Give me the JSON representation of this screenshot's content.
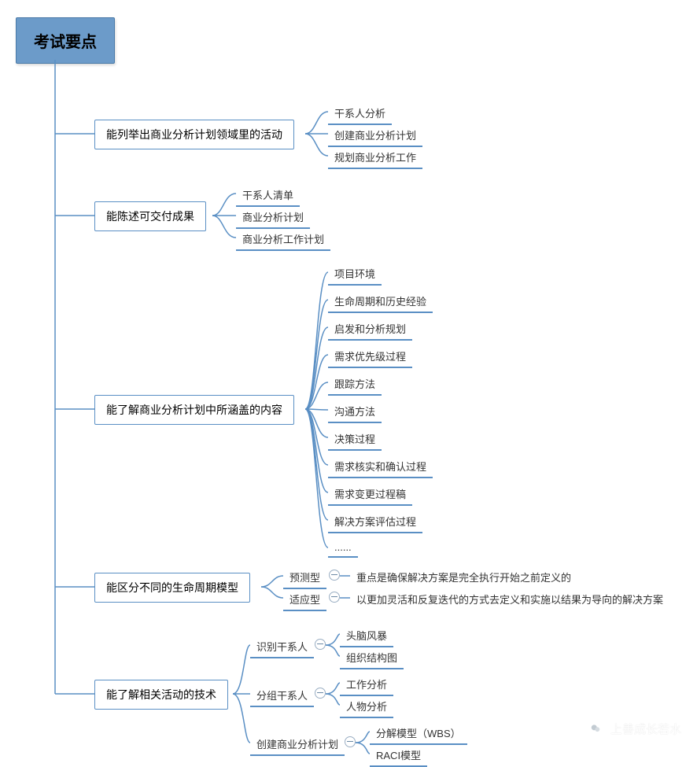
{
  "root": {
    "label": "考试要点"
  },
  "colors": {
    "line": "#5a8fc4",
    "root_fill": "#6c9bc9",
    "root_border": "#4a7aa8",
    "box_border": "#5a8fc4",
    "minus_border": "#9aaec3"
  },
  "branches": [
    {
      "label": "能列举出商业分析计划领域里的活动",
      "children": [
        {
          "label": "干系人分析"
        },
        {
          "label": "创建商业分析计划"
        },
        {
          "label": "规划商业分析工作"
        }
      ]
    },
    {
      "label": "能陈述可交付成果",
      "children": [
        {
          "label": "干系人清单"
        },
        {
          "label": "商业分析计划"
        },
        {
          "label": "商业分析工作计划"
        }
      ]
    },
    {
      "label": "能了解商业分析计划中所涵盖的内容",
      "children": [
        {
          "label": "项目环境"
        },
        {
          "label": "生命周期和历史经验"
        },
        {
          "label": "启发和分析规划"
        },
        {
          "label": "需求优先级过程"
        },
        {
          "label": "跟踪方法"
        },
        {
          "label": "沟通方法"
        },
        {
          "label": "决策过程"
        },
        {
          "label": "需求核实和确认过程"
        },
        {
          "label": "需求变更过程稿"
        },
        {
          "label": "解决方案评估过程"
        },
        {
          "label": "......"
        }
      ]
    },
    {
      "label": "能区分不同的生命周期模型",
      "children": [
        {
          "label": "预测型",
          "note": "重点是确保解决方案是完全执行开始之前定义的"
        },
        {
          "label": "适应型",
          "note": "以更加灵活和反复迭代的方式去定义和实施以结果为导向的解决方案"
        }
      ]
    },
    {
      "label": "能了解相关活动的技术",
      "children": [
        {
          "label": "识别干系人",
          "subs": [
            {
              "label": "头脑风暴"
            },
            {
              "label": "组织结构图"
            }
          ]
        },
        {
          "label": "分组干系人",
          "subs": [
            {
              "label": "工作分析"
            },
            {
              "label": "人物分析"
            }
          ]
        },
        {
          "label": "创建商业分析计划",
          "subs": [
            {
              "label": "分解模型（WBS）"
            },
            {
              "label": "RACI模型"
            }
          ]
        }
      ]
    }
  ],
  "watermark": "上善成长若水"
}
